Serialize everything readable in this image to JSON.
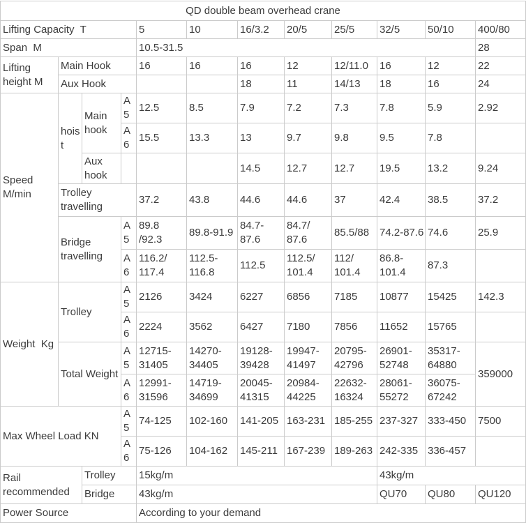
{
  "page": {
    "background_color": "#ffffff",
    "text_color": "#3b3b3b",
    "border_color": "#cbcbcb"
  },
  "table": {
    "title": "QD double beam overhead crane",
    "rows": [
      {
        "cells": [
          {
            "t": "QD double beam overhead crane",
            "cs": 12,
            "al": "c",
            "n": "table-title"
          }
        ]
      },
      {
        "cells": [
          {
            "t": "Lifting Capacity  T",
            "cs": 4,
            "n": "row-label-lifting-capacity"
          },
          {
            "t": "5",
            "n": "col-header"
          },
          {
            "t": "10",
            "n": "col-header"
          },
          {
            "t": "16/3.2",
            "n": "col-header"
          },
          {
            "t": "20/5",
            "n": "col-header"
          },
          {
            "t": "25/5",
            "n": "col-header"
          },
          {
            "t": "32/5",
            "n": "col-header"
          },
          {
            "t": "50/10",
            "n": "col-header"
          },
          {
            "t": "400/80",
            "n": "col-header"
          }
        ]
      },
      {
        "cells": [
          {
            "t": "Span  M",
            "cs": 4,
            "n": "row-label-span"
          },
          {
            "t": "10.5-31.5",
            "cs": 7
          },
          {
            "t": "28"
          }
        ]
      },
      {
        "cells": [
          {
            "t": "Lifting height M",
            "rs": 2,
            "n": "row-label-lifting-height"
          },
          {
            "t": "Main Hook",
            "cs": 3,
            "n": "label-main-hook"
          },
          {
            "t": "16"
          },
          {
            "t": "16"
          },
          {
            "t": "16"
          },
          {
            "t": "12"
          },
          {
            "t": "12/11.0"
          },
          {
            "t": "16"
          },
          {
            "t": "12"
          },
          {
            "t": "22"
          }
        ]
      },
      {
        "cells": [
          {
            "t": "Aux Hook",
            "cs": 3,
            "n": "label-aux-hook"
          },
          {
            "t": ""
          },
          {
            "t": ""
          },
          {
            "t": "18"
          },
          {
            "t": "11"
          },
          {
            "t": "14/13"
          },
          {
            "t": "18"
          },
          {
            "t": "16"
          },
          {
            "t": "24"
          }
        ]
      },
      {
        "cells": [
          {
            "t": "Speed M/min",
            "rs": 6,
            "n": "row-label-speed"
          },
          {
            "t": "hoist",
            "rs": 3,
            "n": "label-hoist"
          },
          {
            "t": "Main hook",
            "rs": 2,
            "n": "label-hoist-main-hook"
          },
          {
            "t": "A5",
            "n": "class-label-a5"
          },
          {
            "t": "12.5"
          },
          {
            "t": "8.5"
          },
          {
            "t": "7.9"
          },
          {
            "t": "7.2"
          },
          {
            "t": "7.3"
          },
          {
            "t": "7.8"
          },
          {
            "t": "5.9"
          },
          {
            "t": "2.92"
          }
        ]
      },
      {
        "cells": [
          {
            "t": "A6",
            "n": "class-label-a6"
          },
          {
            "t": "15.5"
          },
          {
            "t": "13.3"
          },
          {
            "t": "13"
          },
          {
            "t": "9.7"
          },
          {
            "t": "9.8"
          },
          {
            "t": "9.5"
          },
          {
            "t": "7.8"
          },
          {
            "t": ""
          }
        ]
      },
      {
        "cells": [
          {
            "t": "Aux hook",
            "n": "label-hoist-aux-hook"
          },
          {
            "t": ""
          },
          {
            "t": ""
          },
          {
            "t": ""
          },
          {
            "t": "14.5"
          },
          {
            "t": "12.7"
          },
          {
            "t": "12.7"
          },
          {
            "t": "19.5"
          },
          {
            "t": "13.2"
          },
          {
            "t": "9.24"
          }
        ]
      },
      {
        "cells": [
          {
            "t": "Trolley travelling",
            "cs": 3,
            "n": "label-trolley-travelling"
          },
          {
            "t": "37.2"
          },
          {
            "t": "43.8"
          },
          {
            "t": "44.6"
          },
          {
            "t": "44.6"
          },
          {
            "t": "37"
          },
          {
            "t": "42.4"
          },
          {
            "t": "38.5"
          },
          {
            "t": "37.2"
          }
        ]
      },
      {
        "cells": [
          {
            "t": "Bridge travelling",
            "cs": 2,
            "rs": 2,
            "n": "label-bridge-travelling"
          },
          {
            "t": "A5",
            "n": "class-label-a5"
          },
          {
            "t": "89.8\n/92.3"
          },
          {
            "t": "89.8-91.9"
          },
          {
            "t": "84.7-87.6"
          },
          {
            "t": "84.7/\n87.6"
          },
          {
            "t": "85.5/88"
          },
          {
            "t": "74.2-87.6"
          },
          {
            "t": "74.6"
          },
          {
            "t": "25.9"
          }
        ]
      },
      {
        "cells": [
          {
            "t": "A6",
            "n": "class-label-a6"
          },
          {
            "t": "116.2/\n117.4"
          },
          {
            "t": "112.5-\n116.8"
          },
          {
            "t": "112.5"
          },
          {
            "t": "112.5/\n101.4"
          },
          {
            "t": "112/\n101.4"
          },
          {
            "t": "86.8-\n101.4"
          },
          {
            "t": "87.3"
          },
          {
            "t": ""
          }
        ]
      },
      {
        "cells": [
          {
            "t": "Weight  Kg",
            "rs": 4,
            "n": "row-label-weight"
          },
          {
            "t": "Trolley",
            "cs": 2,
            "rs": 2,
            "n": "label-trolley-weight"
          },
          {
            "t": "A5",
            "n": "class-label-a5"
          },
          {
            "t": "2126"
          },
          {
            "t": "3424"
          },
          {
            "t": "6227"
          },
          {
            "t": "6856"
          },
          {
            "t": "7185"
          },
          {
            "t": "10877"
          },
          {
            "t": "15425"
          },
          {
            "t": "142.3"
          }
        ]
      },
      {
        "cells": [
          {
            "t": "A6",
            "n": "class-label-a6"
          },
          {
            "t": "2224"
          },
          {
            "t": "3562"
          },
          {
            "t": "6427"
          },
          {
            "t": "7180"
          },
          {
            "t": "7856"
          },
          {
            "t": "11652"
          },
          {
            "t": "15765"
          },
          {
            "t": ""
          }
        ]
      },
      {
        "cells": [
          {
            "t": "Total Weight",
            "cs": 2,
            "rs": 2,
            "n": "label-total-weight"
          },
          {
            "t": "A5",
            "n": "class-label-a5"
          },
          {
            "t": "12715-\n31405"
          },
          {
            "t": "14270-\n34405"
          },
          {
            "t": "19128-\n39428"
          },
          {
            "t": "19947-\n41497"
          },
          {
            "t": "20795-\n42796"
          },
          {
            "t": "26901-\n52748"
          },
          {
            "t": "35317-\n64880"
          },
          {
            "t": "359000",
            "rs": 2
          }
        ]
      },
      {
        "cells": [
          {
            "t": "A6",
            "n": "class-label-a6"
          },
          {
            "t": "12991-\n31596"
          },
          {
            "t": "14719-\n34699"
          },
          {
            "t": "20045-\n41315"
          },
          {
            "t": "20984-\n44225"
          },
          {
            "t": "22632-\n16324"
          },
          {
            "t": "28061-\n55272"
          },
          {
            "t": "36075-\n67242"
          }
        ]
      },
      {
        "cells": [
          {
            "t": "Max Wheel Load KN",
            "cs": 3,
            "rs": 2,
            "n": "row-label-max-wheel-load"
          },
          {
            "t": "A5",
            "n": "class-label-a5"
          },
          {
            "t": "74-125"
          },
          {
            "t": "102-160"
          },
          {
            "t": "141-205"
          },
          {
            "t": "163-231"
          },
          {
            "t": "185-255"
          },
          {
            "t": "237-327"
          },
          {
            "t": "333-450"
          },
          {
            "t": "7500"
          }
        ]
      },
      {
        "cells": [
          {
            "t": "A6",
            "n": "class-label-a6"
          },
          {
            "t": "75-126"
          },
          {
            "t": "104-162"
          },
          {
            "t": "145-211"
          },
          {
            "t": "167-239"
          },
          {
            "t": "189-263"
          },
          {
            "t": "242-335"
          },
          {
            "t": "336-457"
          },
          {
            "t": ""
          }
        ]
      },
      {
        "cells": [
          {
            "t": "Rail recommended",
            "cs": 2,
            "rs": 2,
            "n": "row-label-rail-recommended"
          },
          {
            "t": "Trolley",
            "cs": 2,
            "n": "label-rail-trolley"
          },
          {
            "t": "15kg/m",
            "cs": 5
          },
          {
            "t": "43kg/m",
            "cs": 3
          }
        ]
      },
      {
        "cells": [
          {
            "t": "Bridge",
            "cs": 2,
            "n": "label-rail-bridge"
          },
          {
            "t": "43kg/m",
            "cs": 5
          },
          {
            "t": "QU70"
          },
          {
            "t": "QU80"
          },
          {
            "t": "QU120"
          }
        ]
      },
      {
        "cells": [
          {
            "t": "Power Source",
            "cs": 4,
            "n": "row-label-power-source"
          },
          {
            "t": "According to your demand",
            "cs": 8
          }
        ]
      }
    ]
  }
}
